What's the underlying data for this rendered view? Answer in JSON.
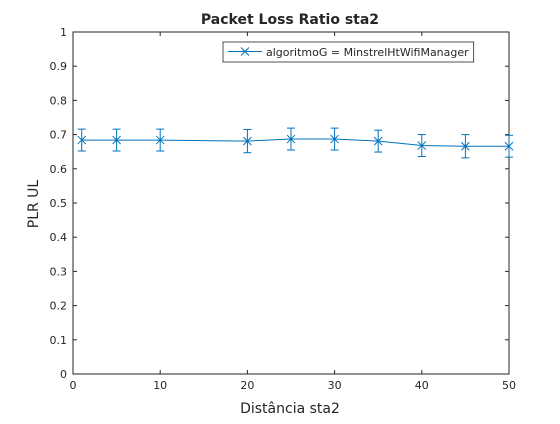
{
  "chart_data": {
    "type": "line",
    "title": "Packet Loss Ratio sta2",
    "xlabel": "Distância sta2",
    "ylabel": "PLR UL",
    "xlim": [
      0,
      50
    ],
    "ylim": [
      0,
      1
    ],
    "xticks": [
      0,
      10,
      20,
      30,
      40,
      50
    ],
    "yticks": [
      0,
      0.1,
      0.2,
      0.3,
      0.4,
      0.5,
      0.6,
      0.7,
      0.8,
      0.9,
      1
    ],
    "grid": false,
    "legend_position": "top-right",
    "series": [
      {
        "name": "algoritmoG = MinstrelHtWifiManager",
        "color": "#0072bd",
        "marker": "x",
        "x": [
          1,
          5,
          10,
          20,
          25,
          30,
          35,
          40,
          45,
          50
        ],
        "y": [
          0.684,
          0.684,
          0.684,
          0.681,
          0.687,
          0.687,
          0.681,
          0.668,
          0.666,
          0.666
        ],
        "error": [
          0.032,
          0.032,
          0.032,
          0.034,
          0.032,
          0.032,
          0.032,
          0.032,
          0.034,
          0.032
        ]
      }
    ]
  }
}
